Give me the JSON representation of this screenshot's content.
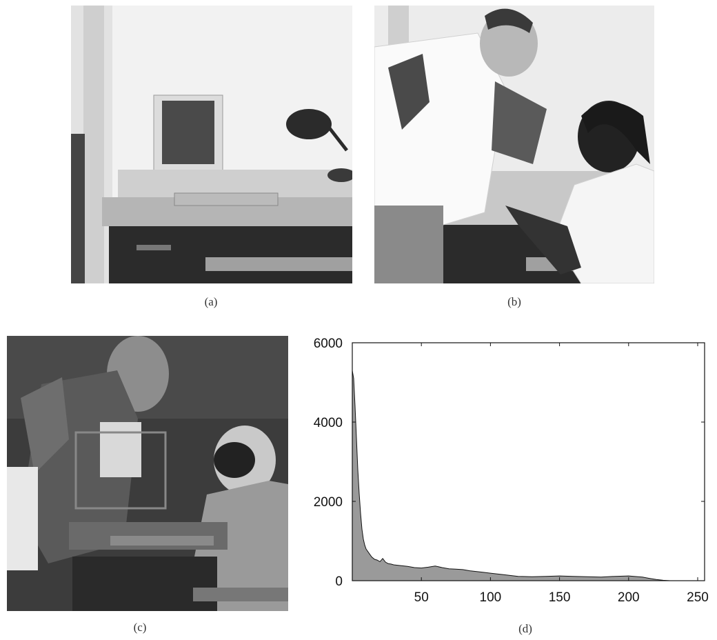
{
  "figure": {
    "captions": {
      "a": "(a)",
      "b": "(b)",
      "c": "(c)",
      "d": "(d)"
    }
  },
  "chart_data": {
    "type": "area",
    "title": "",
    "xlabel": "",
    "ylabel": "",
    "xlim": [
      0,
      255
    ],
    "ylim": [
      0,
      6000
    ],
    "x_ticks": [
      50,
      100,
      150,
      200,
      250
    ],
    "y_ticks": [
      0,
      2000,
      4000,
      6000
    ],
    "series": [
      {
        "values": [
          [
            0,
            5300
          ],
          [
            1,
            5100
          ],
          [
            2,
            4400
          ],
          [
            3,
            3600
          ],
          [
            4,
            2800
          ],
          [
            5,
            2200
          ],
          [
            6,
            1700
          ],
          [
            7,
            1300
          ],
          [
            8,
            1050
          ],
          [
            9,
            900
          ],
          [
            10,
            800
          ],
          [
            12,
            700
          ],
          [
            14,
            600
          ],
          [
            16,
            540
          ],
          [
            18,
            520
          ],
          [
            20,
            480
          ],
          [
            22,
            560
          ],
          [
            24,
            470
          ],
          [
            26,
            430
          ],
          [
            28,
            420
          ],
          [
            30,
            400
          ],
          [
            35,
            380
          ],
          [
            40,
            360
          ],
          [
            45,
            330
          ],
          [
            50,
            320
          ],
          [
            55,
            340
          ],
          [
            60,
            370
          ],
          [
            65,
            330
          ],
          [
            70,
            300
          ],
          [
            75,
            290
          ],
          [
            80,
            280
          ],
          [
            85,
            250
          ],
          [
            90,
            230
          ],
          [
            95,
            210
          ],
          [
            100,
            190
          ],
          [
            110,
            150
          ],
          [
            120,
            110
          ],
          [
            130,
            100
          ],
          [
            140,
            110
          ],
          [
            150,
            120
          ],
          [
            160,
            110
          ],
          [
            170,
            100
          ],
          [
            180,
            90
          ],
          [
            190,
            110
          ],
          [
            200,
            120
          ],
          [
            210,
            90
          ],
          [
            215,
            60
          ],
          [
            220,
            30
          ],
          [
            225,
            10
          ],
          [
            230,
            0
          ],
          [
            255,
            0
          ]
        ]
      }
    ]
  }
}
